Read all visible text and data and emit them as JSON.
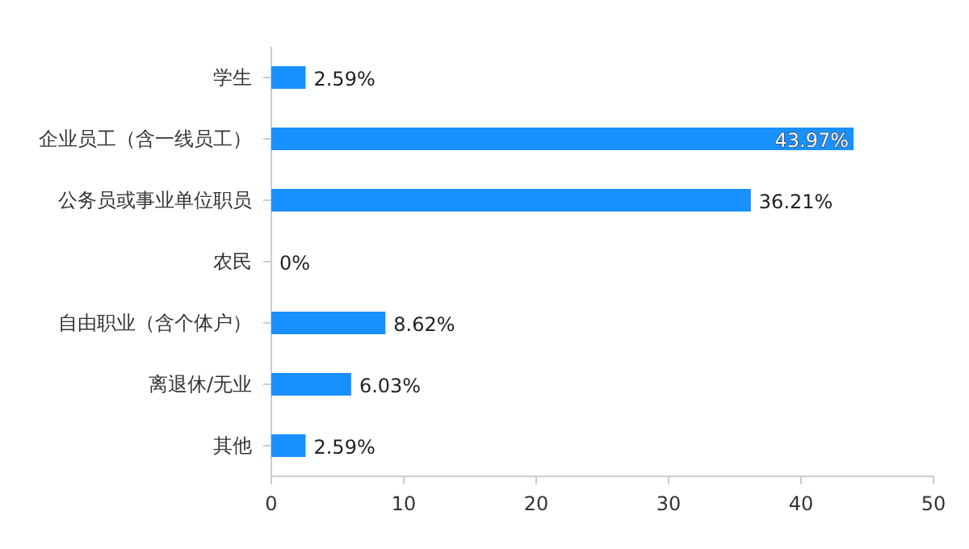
{
  "chart_data": {
    "type": "bar",
    "orientation": "horizontal",
    "categories": [
      "学生",
      "企业员工（含一线员工）",
      "公务员或事业单位职员",
      "农民",
      "自由职业（含个体户）",
      "离退休/无业",
      "其他"
    ],
    "values": [
      2.59,
      43.97,
      36.21,
      0,
      8.62,
      6.03,
      2.59
    ],
    "value_labels": [
      "2.59%",
      "43.97%",
      "36.21%",
      "0%",
      "8.62%",
      "6.03%",
      "2.59%"
    ],
    "color": "#1890ff",
    "xlim": [
      0,
      50
    ],
    "xticks": [
      0,
      10,
      20,
      30,
      40,
      50
    ],
    "grid": false
  }
}
